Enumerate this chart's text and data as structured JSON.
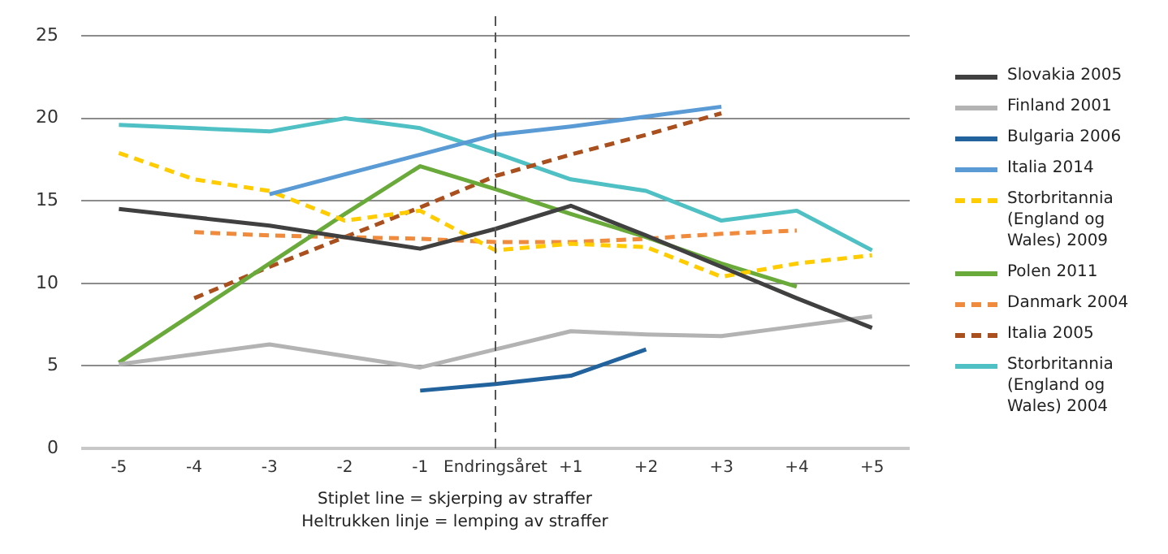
{
  "chart_data": {
    "type": "line",
    "categories": [
      "-5",
      "-4",
      "-3",
      "-2",
      "-1",
      "Endringsåret",
      "+1",
      "+2",
      "+3",
      "+4",
      "+5"
    ],
    "ylim": [
      0,
      25
    ],
    "yticks": [
      0,
      5,
      10,
      15,
      20,
      25
    ],
    "grid": "y",
    "legend": "right",
    "marker": "none",
    "ref_lines": [
      {
        "axis": "x",
        "value": "Endringsåret",
        "color": "#555555",
        "line_style": "dashed"
      }
    ],
    "annotations": [
      "Stiplet line = skjerping av straffer",
      "Heltrukken linje = lemping av straffer"
    ],
    "series": [
      {
        "name": "Slovakia 2005",
        "color": "#404040",
        "line_style": "solid",
        "values": [
          14.5,
          14.0,
          13.5,
          12.8,
          12.1,
          13.3,
          14.7,
          12.9,
          11.0,
          9.1,
          7.3
        ]
      },
      {
        "name": "Finland 2001",
        "color": "#b3b3b3",
        "line_style": "solid",
        "values": [
          5.1,
          5.7,
          6.3,
          5.6,
          4.9,
          6.0,
          7.1,
          6.9,
          6.8,
          7.4,
          8.0
        ]
      },
      {
        "name": "Bulgaria 2006",
        "color": "#22639e",
        "line_style": "solid",
        "values": [
          null,
          null,
          null,
          null,
          3.5,
          3.9,
          4.4,
          6.0,
          null,
          null,
          null
        ]
      },
      {
        "name": "Italia 2014",
        "color": "#5b9bd5",
        "line_style": "solid",
        "values": [
          null,
          null,
          15.4,
          16.6,
          17.8,
          19.0,
          19.5,
          20.1,
          20.7,
          null,
          null
        ]
      },
      {
        "name": "Storbritannia (England og Wales) 2009",
        "color": "#ffcc00",
        "line_style": "dashed",
        "values": [
          17.9,
          16.3,
          15.6,
          13.8,
          14.4,
          12.0,
          12.4,
          12.2,
          10.4,
          11.2,
          11.7
        ]
      },
      {
        "name": "Polen 2011",
        "color": "#6aaa3a",
        "line_style": "solid",
        "values": [
          5.2,
          8.2,
          11.2,
          14.2,
          17.1,
          15.7,
          14.2,
          12.8,
          11.2,
          9.8,
          null
        ]
      },
      {
        "name": "Danmark 2004",
        "color": "#f08a3c",
        "line_style": "dashed",
        "values": [
          null,
          13.1,
          12.9,
          12.8,
          12.7,
          12.5,
          12.5,
          12.7,
          13.0,
          13.2,
          null
        ]
      },
      {
        "name": "Italia 2005",
        "color": "#a9501e",
        "line_style": "dashed",
        "values": [
          null,
          9.1,
          11.0,
          12.8,
          14.6,
          16.5,
          17.8,
          19.0,
          20.3,
          null,
          null
        ]
      },
      {
        "name": "Storbritannia (England og Wales) 2004",
        "color": "#4fc0c4",
        "line_style": "solid",
        "values": [
          19.6,
          19.4,
          19.2,
          20.0,
          19.4,
          17.9,
          16.3,
          15.6,
          13.8,
          14.4,
          12.0
        ]
      }
    ]
  }
}
